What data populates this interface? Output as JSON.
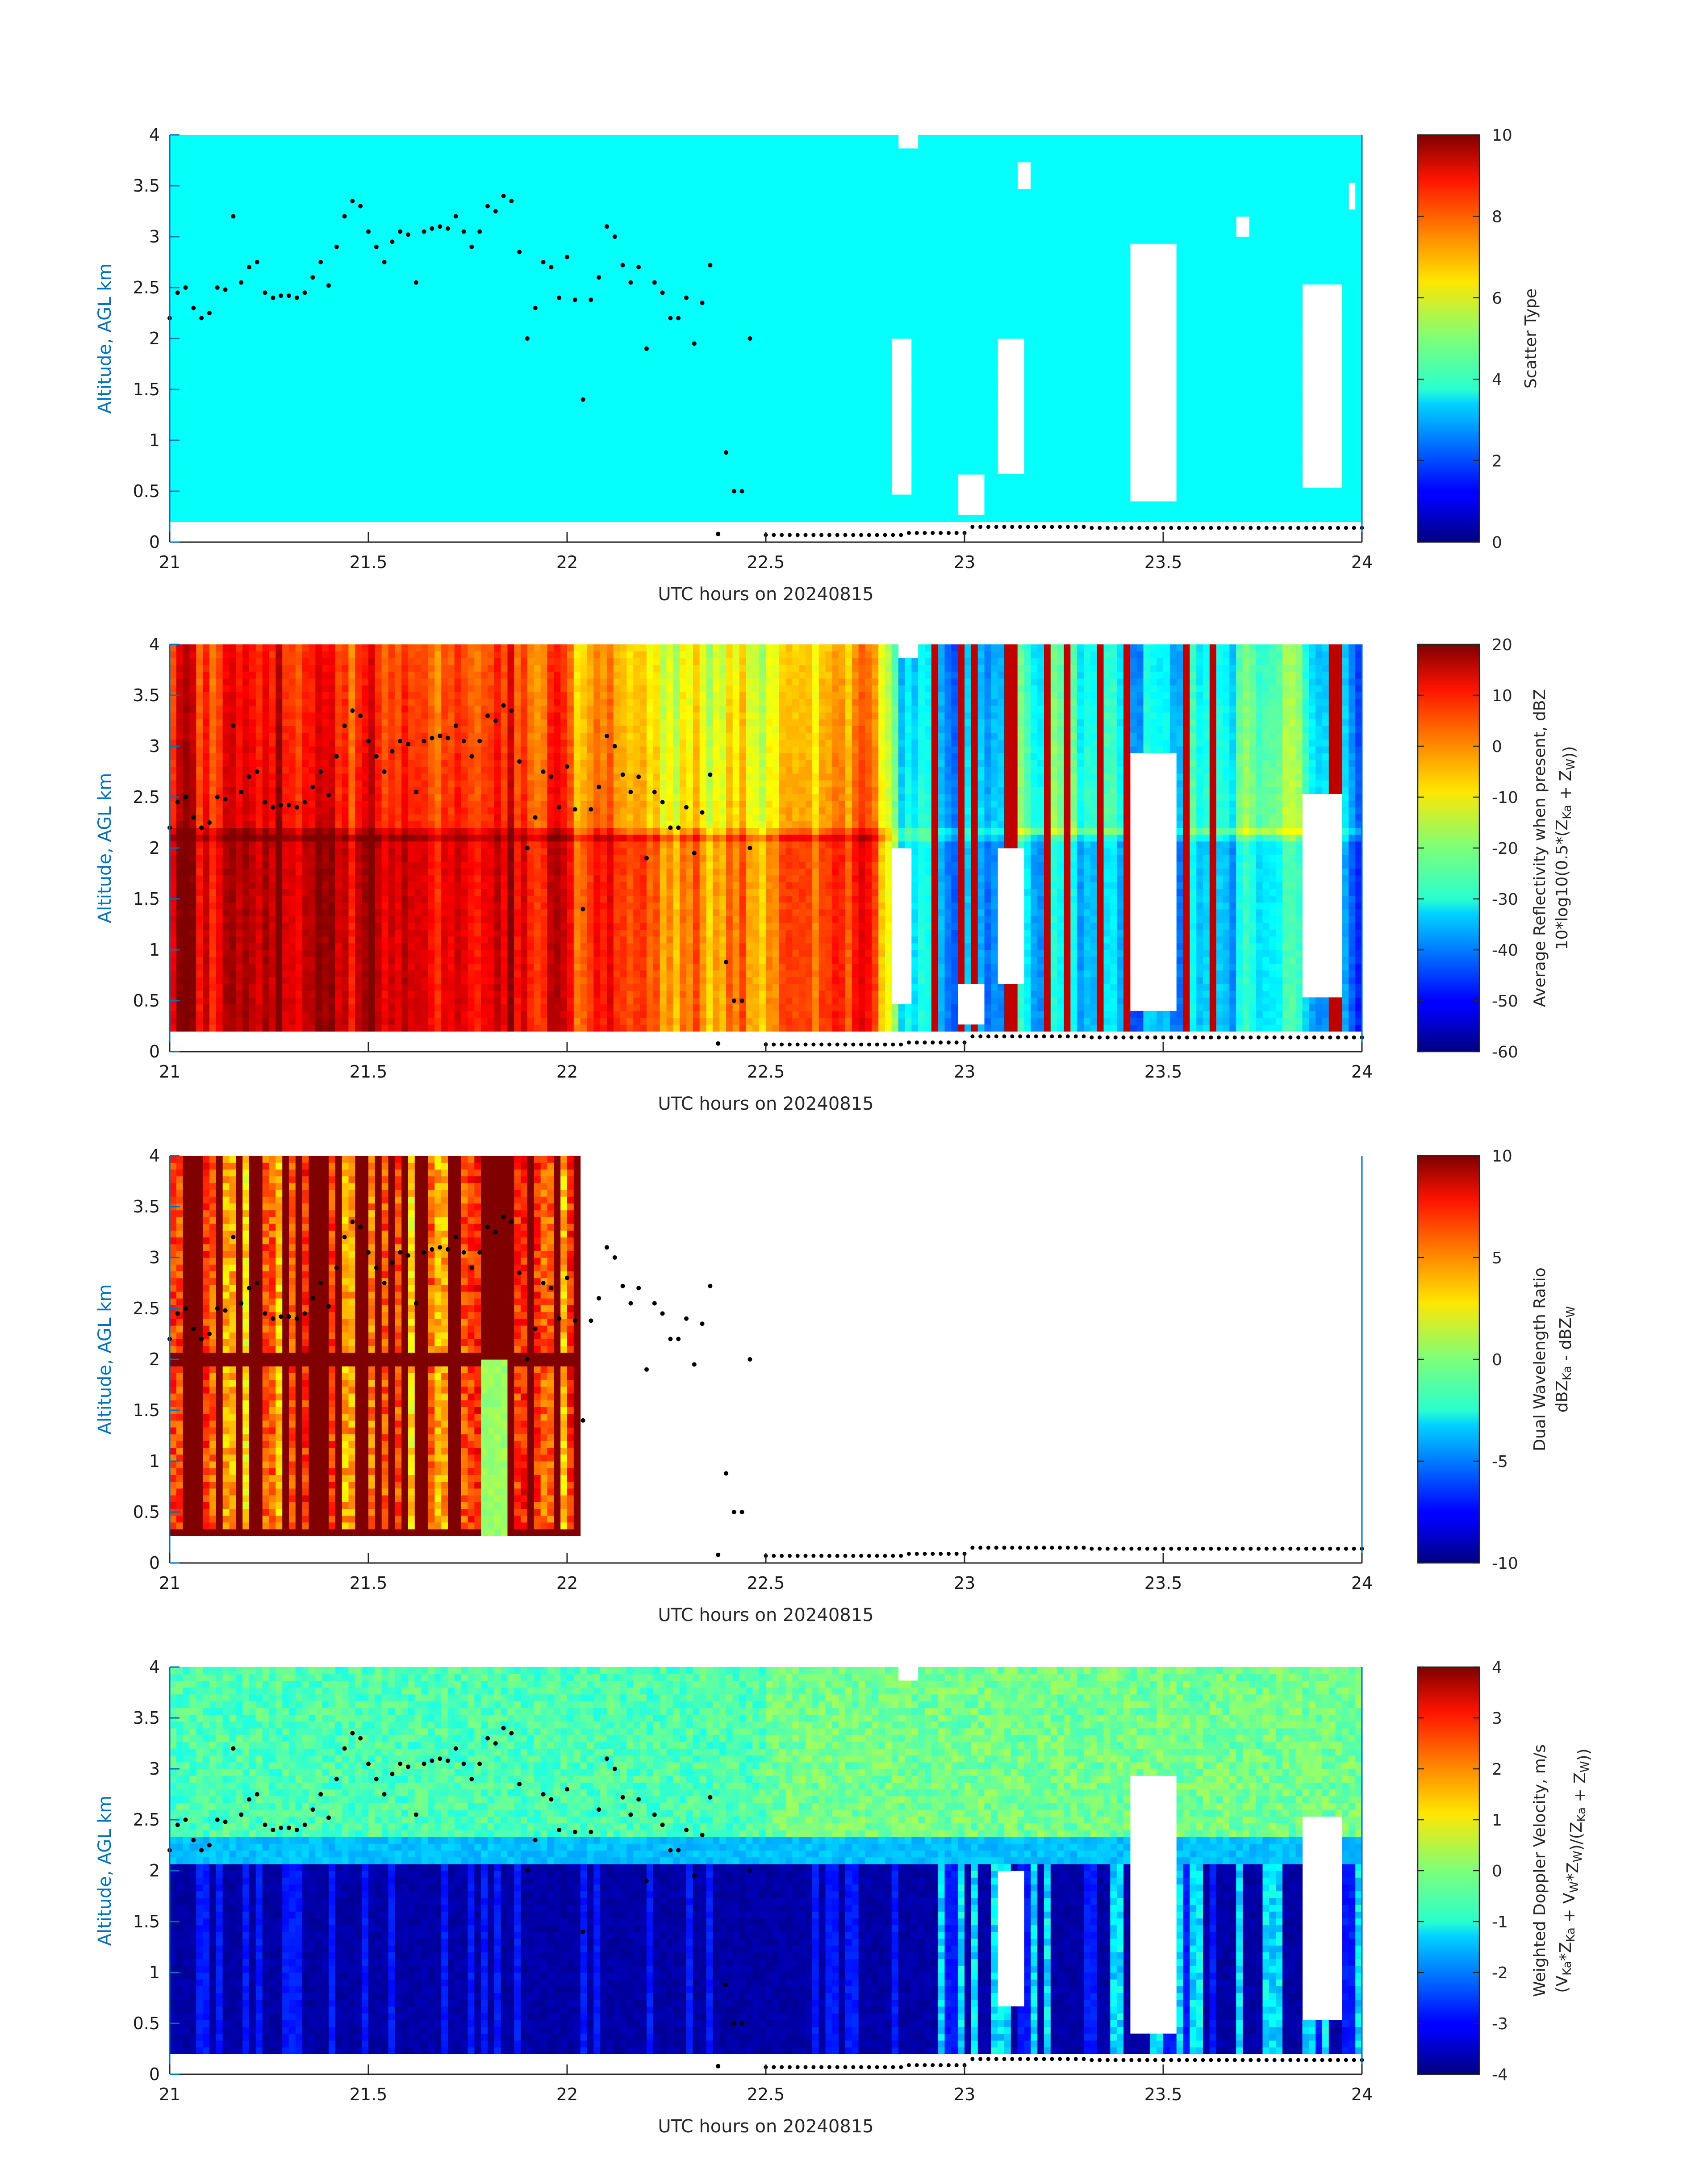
{
  "figure": {
    "background": "#ffffff",
    "axis_color": "#0072BD",
    "marker_color": "#000000",
    "colormap": "jet"
  },
  "chart_data": [
    {
      "type": "heatmap",
      "variable": "scatter_type",
      "xlabel": "UTC hours on 20240815",
      "ylabel": "Altitude, AGL km",
      "xlim": [
        21,
        24
      ],
      "ylim": [
        0,
        4
      ],
      "xticks": [
        "21",
        "21.5",
        "22",
        "22.5",
        "23",
        "23.5",
        "24"
      ],
      "yticks": [
        "0",
        "0.5",
        "1",
        "1.5",
        "2",
        "2.5",
        "3",
        "3.5",
        "4"
      ],
      "colorbar": {
        "label": "Scatter Type",
        "label2": "",
        "range": [
          0,
          10
        ],
        "ticks": [
          "0",
          "2",
          "4",
          "6",
          "8",
          "10"
        ]
      },
      "data_bottom_km": 0.18,
      "fill_value": 3.8,
      "missing_regions": [
        {
          "x": [
            22.84,
            22.88
          ],
          "y": [
            3.85,
            4.0
          ]
        },
        {
          "x": [
            22.82,
            22.87
          ],
          "y": [
            0.45,
            2.0
          ]
        },
        {
          "x": [
            22.99,
            23.05
          ],
          "y": [
            0.3,
            0.65
          ]
        },
        {
          "x": [
            23.08,
            23.15
          ],
          "y": [
            0.7,
            2.0
          ]
        },
        {
          "x": [
            23.14,
            23.16
          ],
          "y": [
            3.5,
            3.75
          ]
        },
        {
          "x": [
            23.41,
            23.53
          ],
          "y": [
            0.4,
            2.9
          ]
        },
        {
          "x": [
            23.69,
            23.72
          ],
          "y": [
            3.0,
            3.2
          ]
        },
        {
          "x": [
            23.85,
            23.95
          ],
          "y": [
            0.55,
            2.5
          ]
        },
        {
          "x": [
            23.96,
            23.98
          ],
          "y": [
            3.3,
            3.5
          ]
        }
      ]
    },
    {
      "type": "heatmap",
      "variable": "average_reflectivity",
      "xlabel": "UTC hours on 20240815",
      "ylabel": "Altitude, AGL km",
      "xlim": [
        21,
        24
      ],
      "ylim": [
        0,
        4
      ],
      "xticks": [
        "21",
        "21.5",
        "22",
        "22.5",
        "23",
        "23.5",
        "24"
      ],
      "yticks": [
        "0",
        "0.5",
        "1",
        "1.5",
        "2",
        "2.5",
        "3",
        "3.5",
        "4"
      ],
      "colorbar": {
        "label": "Average Reflectivity when present, dBZ",
        "label2": "10*log10(0.5*(Z",
        "label2_sub1": "Ka",
        "label2_mid": " + Z",
        "label2_sub2": "W",
        "label2_end": "))",
        "range": [
          -60,
          20
        ],
        "ticks": [
          "-60",
          "-50",
          "-40",
          "-30",
          "-20",
          "-10",
          "0",
          "10",
          "20"
        ]
      },
      "data_bottom_km": 0.18,
      "melting_layer_km": 2.15,
      "time_profile": [
        [
          21.0,
          10,
          14
        ],
        [
          21.2,
          12,
          15
        ],
        [
          21.5,
          8,
          14
        ],
        [
          21.8,
          8,
          12
        ],
        [
          22.0,
          4,
          9
        ],
        [
          22.2,
          -6,
          3
        ],
        [
          22.4,
          -10,
          -3
        ],
        [
          22.6,
          -4,
          4
        ],
        [
          22.75,
          4,
          10
        ],
        [
          22.85,
          -30,
          -30
        ],
        [
          23.0,
          -35,
          -38
        ],
        [
          23.2,
          -20,
          -30
        ],
        [
          23.4,
          -32,
          -40
        ],
        [
          23.6,
          -28,
          -35
        ],
        [
          23.8,
          -20,
          -30
        ],
        [
          24.0,
          -35,
          -40
        ]
      ],
      "missing_regions": [
        {
          "x": [
            22.84,
            22.88
          ],
          "y": [
            3.85,
            4.0
          ]
        },
        {
          "x": [
            22.82,
            22.87
          ],
          "y": [
            0.45,
            2.0
          ]
        },
        {
          "x": [
            22.99,
            23.05
          ],
          "y": [
            0.3,
            0.65
          ]
        },
        {
          "x": [
            23.08,
            23.15
          ],
          "y": [
            0.7,
            2.0
          ]
        },
        {
          "x": [
            23.41,
            23.53
          ],
          "y": [
            0.4,
            2.9
          ]
        },
        {
          "x": [
            23.85,
            23.95
          ],
          "y": [
            0.55,
            2.5
          ]
        }
      ]
    },
    {
      "type": "heatmap",
      "variable": "dual_wavelength_ratio",
      "xlabel": "UTC hours on 20240815",
      "ylabel": "Altitude, AGL km",
      "xlim": [
        21,
        24
      ],
      "ylim": [
        0,
        4
      ],
      "xticks": [
        "21",
        "21.5",
        "22",
        "22.5",
        "23",
        "23.5",
        "24"
      ],
      "yticks": [
        "0",
        "0.5",
        "1",
        "1.5",
        "2",
        "2.5",
        "3",
        "3.5",
        "4"
      ],
      "colorbar": {
        "label": "Dual Wavelength Ratio",
        "label2": "dBZ",
        "label2_sub1": "Ka",
        "label2_mid": " - dBZ",
        "label2_sub2": "W",
        "label2_end": "",
        "range": [
          -10,
          10
        ],
        "ticks": [
          "-10",
          "-5",
          "0",
          "5",
          "10"
        ]
      },
      "data_bottom_km": 0.25,
      "data_x_range": [
        21.0,
        22.03
      ],
      "green_patch": {
        "x": [
          21.78,
          21.85
        ],
        "y": [
          0.25,
          2.0
        ],
        "value": 0
      }
    },
    {
      "type": "heatmap",
      "variable": "weighted_doppler_velocity",
      "xlabel": "UTC hours on 20240815",
      "ylabel": "Altitude, AGL km",
      "xlim": [
        21,
        24
      ],
      "ylim": [
        0,
        4
      ],
      "xticks": [
        "21",
        "21.5",
        "22",
        "22.5",
        "23",
        "23.5",
        "24"
      ],
      "yticks": [
        "0",
        "0.5",
        "1",
        "1.5",
        "2",
        "2.5",
        "3",
        "3.5",
        "4"
      ],
      "colorbar": {
        "label": "Weighted Doppler Velocity, m/s",
        "label2": "(V",
        "label2_sub1": "Ka",
        "label2_mid": "*Z",
        "label2_sub2": "Ka",
        "label2_end": " + V",
        "label2_sub3": "W",
        "label2_end2": "*Z",
        "label2_sub4": "W",
        "label2_end3": ")/(Z",
        "label2_sub5": "Ka",
        "label2_end4": " + Z",
        "label2_sub6": "W",
        "label2_end5": "))",
        "range": [
          -4,
          4
        ],
        "ticks": [
          "-4",
          "-3",
          "-2",
          "-1",
          "0",
          "1",
          "2",
          "3",
          "4"
        ]
      },
      "data_bottom_km": 0.18,
      "melting_layer_km": 2.15,
      "missing_regions": [
        {
          "x": [
            22.84,
            22.88
          ],
          "y": [
            3.85,
            4.0
          ]
        },
        {
          "x": [
            23.08,
            23.15
          ],
          "y": [
            0.7,
            2.0
          ]
        },
        {
          "x": [
            23.41,
            23.53
          ],
          "y": [
            0.4,
            2.9
          ]
        },
        {
          "x": [
            23.85,
            23.95
          ],
          "y": [
            0.55,
            2.5
          ]
        }
      ]
    }
  ],
  "cloud_top_markers": {
    "x": [
      21.0,
      21.02,
      21.04,
      21.06,
      21.08,
      21.1,
      21.12,
      21.14,
      21.16,
      21.18,
      21.2,
      21.22,
      21.24,
      21.26,
      21.28,
      21.3,
      21.32,
      21.34,
      21.36,
      21.38,
      21.4,
      21.42,
      21.44,
      21.46,
      21.48,
      21.5,
      21.52,
      21.54,
      21.56,
      21.58,
      21.6,
      21.62,
      21.64,
      21.66,
      21.68,
      21.7,
      21.72,
      21.74,
      21.76,
      21.78,
      21.8,
      21.82,
      21.84,
      21.86,
      21.88,
      21.9,
      21.92,
      21.94,
      21.96,
      21.98,
      22.0,
      22.02,
      22.04,
      22.06,
      22.08,
      22.1,
      22.12,
      22.14,
      22.16,
      22.18,
      22.2,
      22.22,
      22.24,
      22.26,
      22.28,
      22.3,
      22.32,
      22.34,
      22.36,
      22.38,
      22.4,
      22.42,
      22.44,
      22.46
    ],
    "y": [
      2.2,
      2.45,
      2.5,
      2.3,
      2.2,
      2.25,
      2.5,
      2.48,
      3.2,
      2.55,
      2.7,
      2.75,
      2.45,
      2.4,
      2.42,
      2.42,
      2.4,
      2.45,
      2.6,
      2.75,
      2.52,
      2.9,
      3.2,
      3.35,
      3.3,
      3.05,
      2.9,
      2.75,
      2.95,
      3.05,
      3.02,
      2.55,
      3.05,
      3.08,
      3.1,
      3.08,
      3.2,
      3.05,
      2.9,
      3.05,
      3.3,
      3.25,
      3.4,
      3.35,
      2.85,
      2.0,
      2.3,
      2.75,
      2.7,
      2.4,
      2.8,
      2.38,
      1.4,
      2.38,
      2.6,
      3.1,
      3.0,
      2.72,
      2.55,
      2.7,
      1.9,
      2.55,
      2.45,
      2.2,
      2.2,
      2.4,
      1.95,
      2.35,
      2.72,
      0.08,
      0.88,
      0.5,
      0.5,
      2.0
    ]
  },
  "surface_markers": {
    "x_start": 22.5,
    "x_end": 24.0,
    "x_step": 0.02,
    "y_segments": [
      {
        "x": [
          22.5,
          22.85
        ],
        "y": 0.07
      },
      {
        "x": [
          22.85,
          23.0
        ],
        "y": 0.09
      },
      {
        "x": [
          23.0,
          23.3
        ],
        "y": 0.15
      },
      {
        "x": [
          23.3,
          24.0
        ],
        "y": 0.14
      }
    ]
  }
}
